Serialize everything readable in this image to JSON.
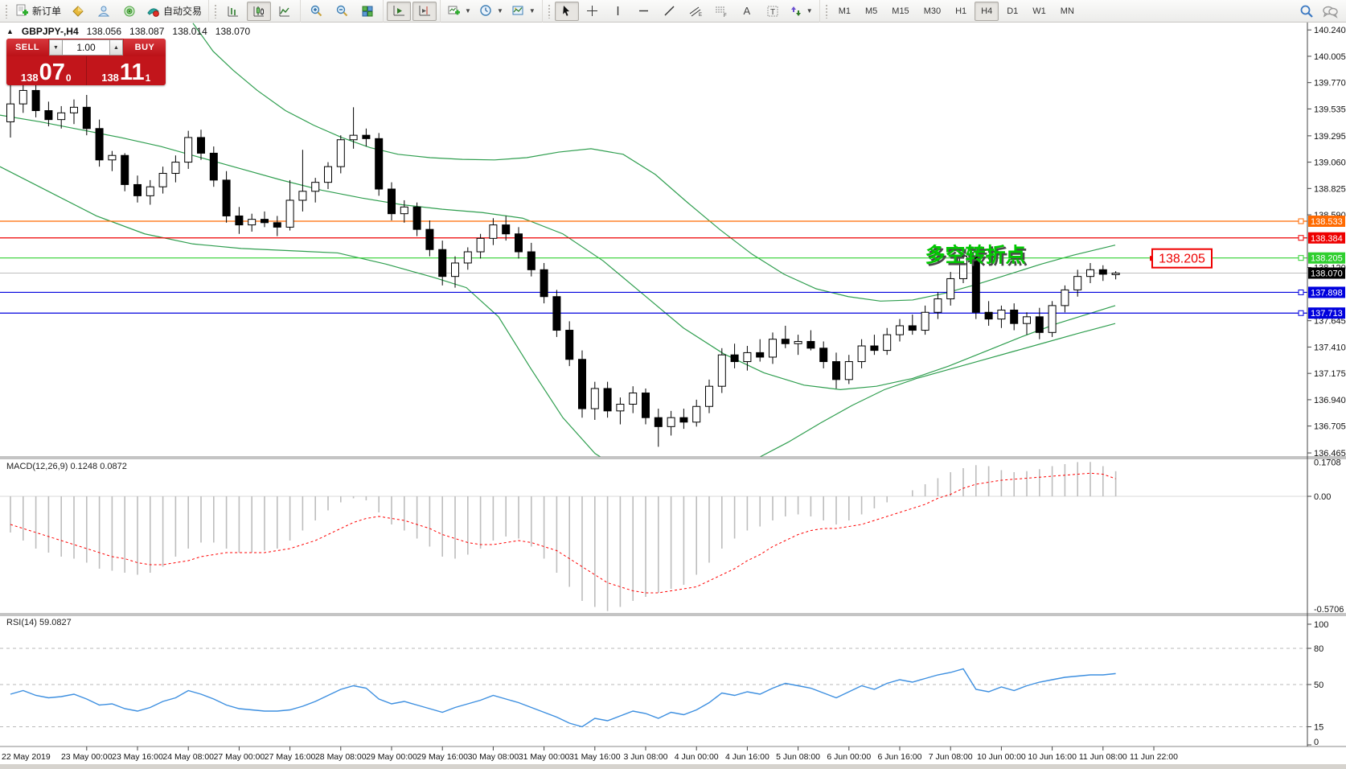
{
  "toolbar": {
    "new_order_label": "新订单",
    "autotrading_label": "自动交易",
    "text_icon": "A",
    "label_icon": "T",
    "timeframes": [
      "M1",
      "M5",
      "M15",
      "M30",
      "H1",
      "H4",
      "D1",
      "W1",
      "MN"
    ],
    "tf_active": "H4"
  },
  "header": {
    "symbol": "GBPJPY-,H4",
    "open": "138.056",
    "high": "138.087",
    "low": "138.014",
    "close": "138.070"
  },
  "trade_panel": {
    "sell_label": "SELL",
    "buy_label": "BUY",
    "volume": "1.00",
    "bid_prefix": "138",
    "bid_big": "07",
    "bid_sup": "0",
    "ask_prefix": "138",
    "ask_big": "11",
    "ask_sup": "1"
  },
  "indicators": {
    "macd": {
      "title": "MACD(12,26,9)",
      "main_value": "0.1248",
      "signal_value": "0.0872"
    },
    "rsi": {
      "title": "RSI(14)",
      "value": "59.0827"
    }
  },
  "annotation": {
    "text": "多空转折点",
    "color": "#00c800",
    "shadow": "#4a4a4a"
  },
  "price_label_box": {
    "text": "138.205",
    "color": "#ee0000"
  },
  "colors": {
    "bollinger": "#2f9e4f",
    "macd_hist": "#bdbdbd",
    "macd_signal": "#ff0000",
    "rsi_line": "#3d8fe0",
    "current_line": "#bfbfbf",
    "current_label_bg": "#000000"
  },
  "chart_data": {
    "type": "candlestick",
    "title": "GBPJPY- H4",
    "ylim": [
      136.465,
      140.24
    ],
    "candles": [
      [
        139.42,
        139.75,
        139.28,
        139.58
      ],
      [
        139.58,
        139.88,
        139.5,
        139.7
      ],
      [
        139.7,
        139.8,
        139.46,
        139.52
      ],
      [
        139.52,
        139.6,
        139.38,
        139.44
      ],
      [
        139.44,
        139.56,
        139.36,
        139.5
      ],
      [
        139.5,
        139.62,
        139.4,
        139.55
      ],
      [
        139.55,
        139.66,
        139.3,
        139.36
      ],
      [
        139.36,
        139.44,
        139.02,
        139.08
      ],
      [
        139.08,
        139.16,
        138.98,
        139.12
      ],
      [
        139.12,
        139.14,
        138.8,
        138.86
      ],
      [
        138.86,
        138.94,
        138.7,
        138.76
      ],
      [
        138.76,
        138.9,
        138.68,
        138.84
      ],
      [
        138.84,
        139.02,
        138.78,
        138.96
      ],
      [
        138.96,
        139.12,
        138.88,
        139.06
      ],
      [
        139.06,
        139.34,
        139.0,
        139.28
      ],
      [
        139.28,
        139.35,
        139.08,
        139.14
      ],
      [
        139.14,
        139.2,
        138.84,
        138.9
      ],
      [
        138.9,
        138.98,
        138.52,
        138.58
      ],
      [
        138.58,
        138.66,
        138.42,
        138.5
      ],
      [
        138.5,
        138.6,
        138.44,
        138.55
      ],
      [
        138.55,
        138.62,
        138.48,
        138.52
      ],
      [
        138.52,
        138.58,
        138.4,
        138.48
      ],
      [
        138.48,
        138.9,
        138.45,
        138.72
      ],
      [
        138.72,
        139.17,
        138.62,
        138.8
      ],
      [
        138.8,
        138.92,
        138.7,
        138.88
      ],
      [
        138.88,
        139.06,
        138.82,
        139.02
      ],
      [
        139.02,
        139.3,
        138.96,
        139.26
      ],
      [
        139.26,
        139.55,
        139.18,
        139.3
      ],
      [
        139.3,
        139.36,
        139.2,
        139.27
      ],
      [
        139.27,
        139.32,
        138.76,
        138.82
      ],
      [
        138.82,
        138.88,
        138.54,
        138.6
      ],
      [
        138.6,
        138.72,
        138.52,
        138.66
      ],
      [
        138.66,
        138.7,
        138.4,
        138.46
      ],
      [
        138.46,
        138.54,
        138.22,
        138.28
      ],
      [
        138.28,
        138.36,
        137.96,
        138.04
      ],
      [
        138.04,
        138.22,
        137.94,
        138.16
      ],
      [
        138.16,
        138.3,
        138.1,
        138.26
      ],
      [
        138.26,
        138.42,
        138.2,
        138.38
      ],
      [
        138.38,
        138.56,
        138.32,
        138.5
      ],
      [
        138.5,
        138.58,
        138.36,
        138.42
      ],
      [
        138.42,
        138.48,
        138.2,
        138.26
      ],
      [
        138.26,
        138.34,
        138.04,
        138.1
      ],
      [
        138.1,
        138.16,
        137.8,
        137.86
      ],
      [
        137.86,
        137.92,
        137.5,
        137.56
      ],
      [
        137.56,
        137.64,
        137.24,
        137.3
      ],
      [
        137.3,
        137.38,
        136.78,
        136.86
      ],
      [
        136.86,
        137.1,
        136.76,
        137.04
      ],
      [
        137.04,
        137.1,
        136.78,
        136.84
      ],
      [
        136.84,
        136.96,
        136.72,
        136.9
      ],
      [
        136.9,
        137.06,
        136.82,
        137.0
      ],
      [
        137.0,
        137.04,
        136.72,
        136.78
      ],
      [
        136.78,
        136.86,
        136.52,
        136.7
      ],
      [
        136.7,
        136.84,
        136.62,
        136.78
      ],
      [
        136.78,
        136.86,
        136.68,
        136.74
      ],
      [
        136.74,
        136.94,
        136.7,
        136.88
      ],
      [
        136.88,
        137.12,
        136.82,
        137.06
      ],
      [
        137.06,
        137.4,
        137.0,
        137.34
      ],
      [
        137.34,
        137.44,
        137.22,
        137.28
      ],
      [
        137.28,
        137.42,
        137.2,
        137.36
      ],
      [
        137.36,
        137.48,
        137.28,
        137.32
      ],
      [
        137.32,
        137.54,
        137.26,
        137.48
      ],
      [
        137.48,
        137.6,
        137.4,
        137.44
      ],
      [
        137.44,
        137.52,
        137.34,
        137.46
      ],
      [
        137.46,
        137.56,
        137.38,
        137.4
      ],
      [
        137.4,
        137.46,
        137.22,
        137.28
      ],
      [
        137.28,
        137.36,
        137.04,
        137.12
      ],
      [
        137.12,
        137.34,
        137.08,
        137.28
      ],
      [
        137.28,
        137.48,
        137.22,
        137.42
      ],
      [
        137.42,
        137.52,
        137.34,
        137.38
      ],
      [
        137.38,
        137.58,
        137.34,
        137.52
      ],
      [
        137.52,
        137.66,
        137.46,
        137.6
      ],
      [
        137.6,
        137.7,
        137.52,
        137.56
      ],
      [
        137.56,
        137.78,
        137.52,
        137.72
      ],
      [
        137.72,
        137.9,
        137.66,
        137.84
      ],
      [
        137.84,
        138.08,
        137.78,
        138.02
      ],
      [
        138.02,
        138.28,
        137.98,
        138.22
      ],
      [
        138.22,
        138.26,
        137.66,
        137.72
      ],
      [
        137.72,
        137.82,
        137.6,
        137.66
      ],
      [
        137.66,
        137.78,
        137.58,
        137.74
      ],
      [
        137.74,
        137.8,
        137.56,
        137.62
      ],
      [
        137.62,
        137.72,
        137.52,
        137.68
      ],
      [
        137.68,
        137.76,
        137.48,
        137.54
      ],
      [
        137.54,
        137.82,
        137.5,
        137.78
      ],
      [
        137.78,
        137.96,
        137.72,
        137.92
      ],
      [
        137.92,
        138.1,
        137.86,
        138.04
      ],
      [
        138.04,
        138.16,
        137.98,
        138.1
      ],
      [
        138.1,
        138.14,
        138.0,
        138.06
      ],
      [
        138.056,
        138.087,
        138.014,
        138.07
      ]
    ],
    "bollinger": {
      "upper": [
        [
          240,
          140.3
        ],
        [
          265,
          140.05
        ],
        [
          290,
          139.88
        ],
        [
          320,
          139.7
        ],
        [
          355,
          139.52
        ],
        [
          390,
          139.39
        ],
        [
          425,
          139.28
        ],
        [
          460,
          139.19
        ],
        [
          495,
          139.13
        ],
        [
          535,
          139.1
        ],
        [
          575,
          139.085
        ],
        [
          615,
          139.08
        ],
        [
          655,
          139.1
        ],
        [
          695,
          139.15
        ],
        [
          735,
          139.18
        ],
        [
          775,
          139.13
        ],
        [
          815,
          138.95
        ],
        [
          855,
          138.7
        ],
        [
          895,
          138.46
        ],
        [
          935,
          138.24
        ],
        [
          975,
          138.06
        ],
        [
          1015,
          137.93
        ],
        [
          1055,
          137.86
        ],
        [
          1095,
          137.82
        ],
        [
          1135,
          137.83
        ],
        [
          1175,
          137.89
        ],
        [
          1215,
          137.97
        ],
        [
          1255,
          138.06
        ],
        [
          1295,
          138.15
        ],
        [
          1335,
          138.23
        ],
        [
          1387,
          138.32
        ]
      ],
      "middle": [
        [
          0,
          139.48
        ],
        [
          50,
          139.42
        ],
        [
          100,
          139.35
        ],
        [
          150,
          139.28
        ],
        [
          200,
          139.2
        ],
        [
          250,
          139.1
        ],
        [
          300,
          139.0
        ],
        [
          350,
          138.9
        ],
        [
          400,
          138.81
        ],
        [
          450,
          138.74
        ],
        [
          500,
          138.68
        ],
        [
          550,
          138.64
        ],
        [
          600,
          138.61
        ],
        [
          650,
          138.56
        ],
        [
          700,
          138.42
        ],
        [
          750,
          138.18
        ],
        [
          800,
          137.88
        ],
        [
          850,
          137.58
        ],
        [
          900,
          137.35
        ],
        [
          950,
          137.18
        ],
        [
          1000,
          137.07
        ],
        [
          1045,
          137.03
        ],
        [
          1090,
          137.06
        ],
        [
          1135,
          137.13
        ],
        [
          1180,
          137.24
        ],
        [
          1225,
          137.37
        ],
        [
          1270,
          137.5
        ],
        [
          1315,
          137.62
        ],
        [
          1387,
          137.78
        ]
      ],
      "lower": [
        [
          0,
          139.02
        ],
        [
          60,
          138.8
        ],
        [
          120,
          138.58
        ],
        [
          180,
          138.42
        ],
        [
          240,
          138.33
        ],
        [
          300,
          138.29
        ],
        [
          360,
          138.27
        ],
        [
          420,
          138.25
        ],
        [
          480,
          138.15
        ],
        [
          540,
          138.03
        ],
        [
          580,
          137.94
        ],
        [
          620,
          137.68
        ],
        [
          660,
          137.22
        ],
        [
          700,
          136.78
        ],
        [
          740,
          136.46
        ],
        [
          780,
          136.28
        ],
        [
          820,
          136.2
        ],
        [
          860,
          136.21
        ],
        [
          900,
          136.28
        ],
        [
          940,
          136.41
        ],
        [
          980,
          136.56
        ],
        [
          1020,
          136.73
        ],
        [
          1060,
          136.89
        ],
        [
          1100,
          137.03
        ],
        [
          1140,
          137.13
        ],
        [
          1180,
          137.21
        ],
        [
          1220,
          137.29
        ],
        [
          1260,
          137.37
        ],
        [
          1300,
          137.45
        ],
        [
          1340,
          137.53
        ],
        [
          1387,
          137.62
        ]
      ]
    },
    "levels": [
      {
        "price": 138.533,
        "color": "#ff6a00",
        "label": "138.533"
      },
      {
        "price": 138.384,
        "color": "#ee0000",
        "label": "138.384"
      },
      {
        "price": 138.205,
        "color": "#2fcf2f",
        "label": "138.205"
      },
      {
        "price": 137.898,
        "color": "#0000dd",
        "label": "137.898"
      },
      {
        "price": 137.713,
        "color": "#0000dd",
        "label": "137.713"
      }
    ],
    "current_price": {
      "value": 138.07,
      "label": "138.070"
    },
    "price_ticks": [
      "140.240",
      "140.005",
      "139.770",
      "139.535",
      "139.295",
      "139.060",
      "138.825",
      "138.590",
      "138.120",
      "137.645",
      "137.410",
      "137.175",
      "136.940",
      "136.705",
      "136.465"
    ],
    "macd": {
      "params": "12,26,9",
      "main": [
        -0.18,
        -0.22,
        -0.26,
        -0.28,
        -0.3,
        -0.31,
        -0.33,
        -0.36,
        -0.37,
        -0.38,
        -0.39,
        -0.38,
        -0.35,
        -0.3,
        -0.26,
        -0.23,
        -0.23,
        -0.26,
        -0.28,
        -0.28,
        -0.27,
        -0.26,
        -0.22,
        -0.17,
        -0.12,
        -0.07,
        -0.03,
        -0.01,
        -0.02,
        -0.08,
        -0.14,
        -0.17,
        -0.21,
        -0.25,
        -0.3,
        -0.31,
        -0.29,
        -0.26,
        -0.22,
        -0.2,
        -0.21,
        -0.25,
        -0.31,
        -0.38,
        -0.45,
        -0.52,
        -0.55,
        -0.5706,
        -0.55,
        -0.52,
        -0.5,
        -0.48,
        -0.46,
        -0.44,
        -0.39,
        -0.33,
        -0.26,
        -0.21,
        -0.17,
        -0.15,
        -0.12,
        -0.1,
        -0.09,
        -0.1,
        -0.12,
        -0.14,
        -0.12,
        -0.09,
        -0.06,
        -0.03,
        0.0,
        0.03,
        0.06,
        0.09,
        0.12,
        0.14,
        0.155,
        0.15,
        0.13,
        0.12,
        0.125,
        0.135,
        0.15,
        0.16,
        0.17,
        0.1708,
        0.15,
        0.1248
      ],
      "signal": [
        -0.14,
        -0.16,
        -0.18,
        -0.2,
        -0.22,
        -0.24,
        -0.26,
        -0.28,
        -0.3,
        -0.31,
        -0.33,
        -0.34,
        -0.34,
        -0.33,
        -0.32,
        -0.3,
        -0.29,
        -0.28,
        -0.28,
        -0.28,
        -0.28,
        -0.27,
        -0.26,
        -0.24,
        -0.22,
        -0.19,
        -0.16,
        -0.13,
        -0.11,
        -0.1,
        -0.11,
        -0.12,
        -0.14,
        -0.16,
        -0.19,
        -0.21,
        -0.23,
        -0.24,
        -0.24,
        -0.23,
        -0.22,
        -0.23,
        -0.25,
        -0.27,
        -0.31,
        -0.35,
        -0.39,
        -0.43,
        -0.45,
        -0.47,
        -0.48,
        -0.48,
        -0.47,
        -0.46,
        -0.45,
        -0.42,
        -0.39,
        -0.36,
        -0.32,
        -0.29,
        -0.25,
        -0.22,
        -0.19,
        -0.17,
        -0.16,
        -0.16,
        -0.15,
        -0.14,
        -0.12,
        -0.1,
        -0.08,
        -0.06,
        -0.04,
        -0.01,
        0.01,
        0.04,
        0.06,
        0.07,
        0.08,
        0.085,
        0.09,
        0.095,
        0.1,
        0.105,
        0.11,
        0.115,
        0.11,
        0.0872
      ],
      "axis_max": "0.1708",
      "axis_zero": "0.00",
      "axis_min": "-0.5706"
    },
    "rsi": {
      "period": 14,
      "values": [
        42,
        45,
        41,
        39,
        40,
        42,
        38,
        33,
        34,
        30,
        28,
        31,
        36,
        39,
        45,
        42,
        38,
        33,
        30,
        29,
        28,
        28,
        29,
        32,
        36,
        41,
        46,
        49,
        47,
        38,
        34,
        36,
        33,
        30,
        27,
        31,
        34,
        37,
        41,
        38,
        35,
        31,
        27,
        23,
        18,
        15,
        22,
        20,
        24,
        28,
        26,
        22,
        27,
        25,
        29,
        35,
        43,
        41,
        44,
        42,
        47,
        51,
        49,
        47,
        43,
        39,
        44,
        49,
        46,
        51,
        54,
        52,
        55,
        58,
        60,
        63,
        46,
        44,
        48,
        45,
        49,
        52,
        54,
        56,
        57,
        58,
        58,
        59.08
      ],
      "level_lines": [
        80,
        50,
        15
      ],
      "axis_labels": [
        "100",
        "80",
        "50",
        "15",
        "0"
      ]
    },
    "time_axis": {
      "labels": [
        "22 May 2019",
        "23 May 00:00",
        "23 May 16:00",
        "24 May 08:00",
        "27 May 00:00",
        "27 May 16:00",
        "28 May 08:00",
        "29 May 00:00",
        "29 May 16:00",
        "30 May 08:00",
        "31 May 00:00",
        "31 May 16:00",
        "3 Jun 08:00",
        "4 Jun 00:00",
        "4 Jun 16:00",
        "5 Jun 08:00",
        "6 Jun 00:00",
        "6 Jun 16:00",
        "7 Jun 08:00",
        "10 Jun 00:00",
        "10 Jun 16:00",
        "11 Jun 08:00",
        "11 Jun 22:00"
      ]
    }
  }
}
